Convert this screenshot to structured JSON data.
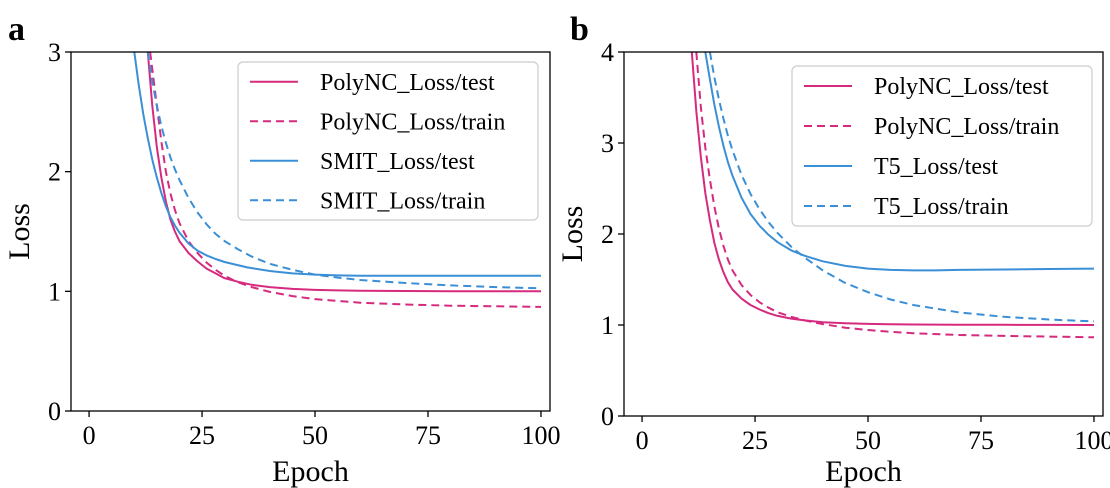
{
  "figure": {
    "panels": [
      {
        "letter": "a"
      },
      {
        "letter": "b"
      }
    ]
  },
  "colors": {
    "polync": "#d62a7e",
    "other": "#3b8fd6"
  },
  "chart_data": [
    {
      "type": "line",
      "panel_label": "a",
      "xlabel": "Epoch",
      "ylabel": "Loss",
      "xlim": [
        -4,
        102
      ],
      "ylim": [
        0,
        3
      ],
      "xticks": [
        0,
        25,
        50,
        75,
        100
      ],
      "yticks": [
        0,
        1,
        2,
        3
      ],
      "grid": false,
      "legend_position": "top-right",
      "series": [
        {
          "name": "PolyNC_Loss/test",
          "color": "#d62a7e",
          "style": "solid",
          "x": [
            13,
            14,
            15,
            16,
            17,
            18,
            19,
            20,
            22,
            24,
            26,
            28,
            30,
            33,
            36,
            40,
            45,
            50,
            55,
            60,
            70,
            80,
            90,
            100
          ],
          "y": [
            3.0,
            2.55,
            2.2,
            1.95,
            1.75,
            1.6,
            1.5,
            1.42,
            1.32,
            1.25,
            1.19,
            1.15,
            1.11,
            1.08,
            1.055,
            1.035,
            1.02,
            1.012,
            1.008,
            1.005,
            1.003,
            1.001,
            1.0,
            1.0
          ]
        },
        {
          "name": "PolyNC_Loss/train",
          "color": "#d62a7e",
          "style": "dashed",
          "x": [
            13.5,
            15,
            16,
            17,
            18,
            19,
            20,
            22,
            24,
            26,
            28,
            30,
            33,
            36,
            40,
            45,
            50,
            55,
            60,
            70,
            80,
            90,
            100
          ],
          "y": [
            3.0,
            2.55,
            2.25,
            2.0,
            1.82,
            1.68,
            1.57,
            1.42,
            1.32,
            1.24,
            1.18,
            1.13,
            1.075,
            1.035,
            0.995,
            0.96,
            0.935,
            0.92,
            0.905,
            0.89,
            0.88,
            0.875,
            0.87
          ]
        },
        {
          "name": "SMIT_Loss/test",
          "color": "#3b8fd6",
          "style": "solid",
          "x": [
            10,
            11,
            12,
            13,
            14,
            15,
            16,
            17,
            18,
            19,
            20,
            22,
            24,
            26,
            28,
            30,
            35,
            40,
            45,
            50,
            55,
            60,
            70,
            80,
            90,
            100
          ],
          "y": [
            3.0,
            2.72,
            2.48,
            2.28,
            2.1,
            1.95,
            1.82,
            1.71,
            1.62,
            1.55,
            1.49,
            1.4,
            1.34,
            1.3,
            1.27,
            1.245,
            1.2,
            1.17,
            1.15,
            1.14,
            1.133,
            1.13,
            1.13,
            1.13,
            1.13,
            1.13
          ]
        },
        {
          "name": "SMIT_Loss/train",
          "color": "#3b8fd6",
          "style": "dashed",
          "x": [
            13,
            14,
            15,
            16,
            17,
            18,
            19,
            20,
            22,
            24,
            26,
            28,
            30,
            33,
            36,
            40,
            45,
            50,
            55,
            60,
            70,
            80,
            90,
            100
          ],
          "y": [
            3.0,
            2.75,
            2.55,
            2.38,
            2.24,
            2.12,
            2.02,
            1.93,
            1.78,
            1.66,
            1.56,
            1.48,
            1.42,
            1.35,
            1.29,
            1.23,
            1.18,
            1.14,
            1.115,
            1.095,
            1.07,
            1.05,
            1.035,
            1.025
          ]
        }
      ]
    },
    {
      "type": "line",
      "panel_label": "b",
      "xlabel": "Epoch",
      "ylabel": "Loss",
      "xlim": [
        -4,
        102
      ],
      "ylim": [
        0,
        4
      ],
      "xticks": [
        0,
        25,
        50,
        75,
        100
      ],
      "yticks": [
        0,
        1,
        2,
        3,
        4
      ],
      "grid": false,
      "legend_position": "top-right",
      "series": [
        {
          "name": "PolyNC_Loss/test",
          "color": "#d62a7e",
          "style": "solid",
          "x": [
            11,
            12,
            13,
            14,
            15,
            16,
            17,
            18,
            19,
            20,
            22,
            24,
            26,
            28,
            30,
            33,
            36,
            40,
            45,
            50,
            55,
            60,
            70,
            80,
            90,
            100
          ],
          "y": [
            4.0,
            3.35,
            2.85,
            2.45,
            2.15,
            1.9,
            1.72,
            1.58,
            1.47,
            1.39,
            1.29,
            1.22,
            1.17,
            1.13,
            1.1,
            1.07,
            1.05,
            1.03,
            1.02,
            1.012,
            1.008,
            1.005,
            1.003,
            1.002,
            1.001,
            1.0
          ]
        },
        {
          "name": "PolyNC_Loss/train",
          "color": "#d62a7e",
          "style": "dashed",
          "x": [
            12,
            13,
            14,
            15,
            16,
            17,
            18,
            19,
            20,
            22,
            24,
            26,
            28,
            30,
            33,
            36,
            40,
            45,
            50,
            55,
            60,
            70,
            80,
            90,
            100
          ],
          "y": [
            4.0,
            3.4,
            2.95,
            2.6,
            2.3,
            2.06,
            1.87,
            1.72,
            1.6,
            1.44,
            1.33,
            1.25,
            1.19,
            1.14,
            1.09,
            1.05,
            1.01,
            0.97,
            0.945,
            0.925,
            0.91,
            0.89,
            0.88,
            0.872,
            0.865
          ]
        },
        {
          "name": "T5_Loss/test",
          "color": "#3b8fd6",
          "style": "solid",
          "x": [
            14,
            15,
            16,
            17,
            18,
            19,
            20,
            22,
            24,
            26,
            28,
            30,
            33,
            36,
            40,
            45,
            50,
            55,
            60,
            65,
            70,
            80,
            90,
            100
          ],
          "y": [
            4.0,
            3.7,
            3.42,
            3.18,
            2.97,
            2.79,
            2.64,
            2.4,
            2.22,
            2.09,
            1.99,
            1.91,
            1.82,
            1.76,
            1.7,
            1.65,
            1.62,
            1.605,
            1.6,
            1.6,
            1.605,
            1.61,
            1.615,
            1.62
          ]
        },
        {
          "name": "T5_Loss/train",
          "color": "#3b8fd6",
          "style": "dashed",
          "x": [
            15,
            16,
            17,
            18,
            19,
            20,
            22,
            24,
            26,
            28,
            30,
            33,
            36,
            40,
            45,
            50,
            55,
            60,
            70,
            80,
            90,
            100
          ],
          "y": [
            4.0,
            3.72,
            3.48,
            3.27,
            3.08,
            2.92,
            2.65,
            2.44,
            2.27,
            2.13,
            2.01,
            1.86,
            1.74,
            1.6,
            1.46,
            1.36,
            1.28,
            1.22,
            1.14,
            1.09,
            1.06,
            1.04
          ]
        }
      ]
    }
  ]
}
